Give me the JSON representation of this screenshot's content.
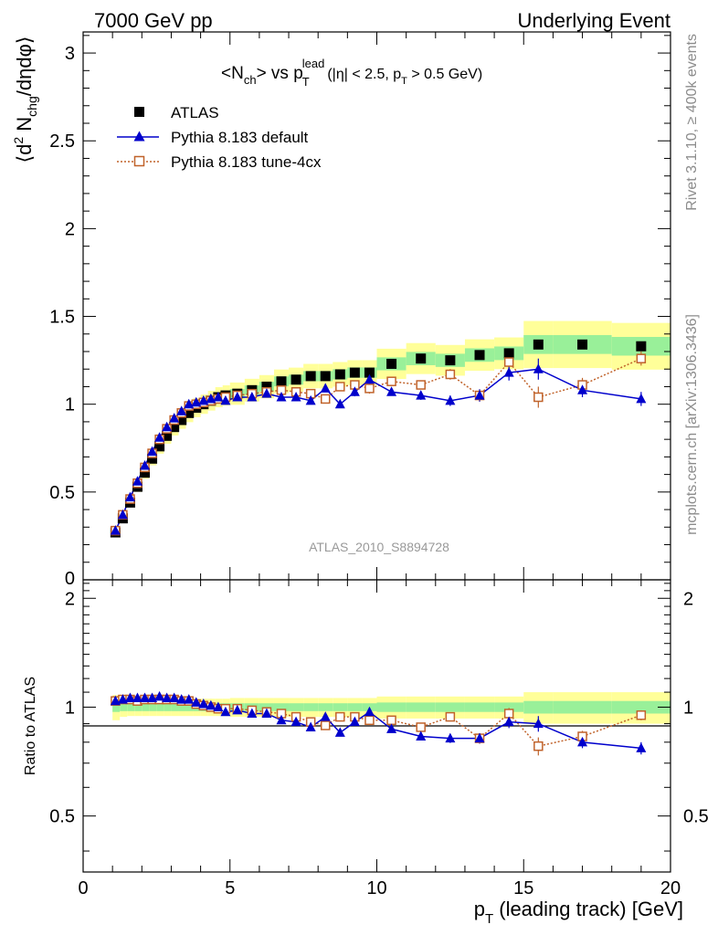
{
  "header": {
    "left": "7000 GeV pp",
    "right": "Underlying Event"
  },
  "side_labels": {
    "rivet": "Rivet 3.1.10, ≥ 400k events",
    "mcplots": "mcplots.cern.ch [arXiv:1306.3436]"
  },
  "analysis_id": "ATLAS_2010_S8894728",
  "colors": {
    "atlas": "#000000",
    "default": "#0000cc",
    "tune4cx": "#c0622a",
    "band_inner": "#99f099",
    "band_outer": "#ffff99"
  },
  "chart_data": {
    "type": "scatter",
    "title": "<N_ch> vs p_T^lead (|η| < 2.5, p_T > 0.5 GeV)",
    "title_parts": {
      "n": "<N",
      "ch": "ch",
      "vs": "> vs p",
      "T": "T",
      "lead": "lead",
      "cut_a": "(|η| < 2.5, p",
      "cut_T": "T",
      "cut_b": " > 0.5 GeV)"
    },
    "ylabel_parts": {
      "open": "⟨d",
      "sup2": "2",
      "n": " N",
      "chg": "chg",
      "rest": "/dηdφ⟩"
    },
    "xlabel_parts": {
      "p": "p",
      "T": "T",
      "rest": " (leading track) [GeV]"
    },
    "ratio_ylabel": "Ratio to ATLAS",
    "xlim": [
      0,
      20
    ],
    "ylim": [
      0,
      3.12
    ],
    "ratio_ylim": [
      0.35,
      2.25
    ],
    "xticks": [
      0,
      5,
      10,
      15,
      20
    ],
    "xtick_labels": [
      "0",
      "5",
      "10",
      "15",
      "20"
    ],
    "yticks": [
      0.5,
      1,
      1.5,
      2,
      2.5,
      3
    ],
    "ytick_labels": [
      "0.5",
      "1",
      "1.5",
      "2",
      "2.5",
      "3"
    ],
    "ytick_zero_label": "0",
    "ratio_yticks": [
      0.5,
      1,
      2
    ],
    "ratio_ytick_labels": [
      "0.5",
      "1",
      "2"
    ],
    "legend": [
      "ATLAS",
      "Pythia 8.183 default",
      "Pythia 8.183 tune-4cx"
    ],
    "x": [
      1.1,
      1.35,
      1.6,
      1.85,
      2.1,
      2.35,
      2.6,
      2.85,
      3.1,
      3.35,
      3.6,
      3.85,
      4.1,
      4.35,
      4.6,
      4.85,
      5.25,
      5.75,
      6.25,
      6.75,
      7.25,
      7.75,
      8.25,
      8.75,
      9.25,
      9.75,
      10.5,
      11.5,
      12.5,
      13.5,
      14.5,
      15.5,
      17.0,
      19.0
    ],
    "x_low": [
      1.0,
      1.25,
      1.5,
      1.75,
      2.0,
      2.25,
      2.5,
      2.75,
      3.0,
      3.25,
      3.5,
      3.75,
      4.0,
      4.25,
      4.5,
      4.75,
      5.0,
      5.5,
      6.0,
      6.5,
      7.0,
      7.5,
      8.0,
      8.5,
      9.0,
      9.5,
      10.0,
      11.0,
      12.0,
      13.0,
      14.0,
      15.0,
      16.0,
      18.0
    ],
    "x_high": [
      1.25,
      1.5,
      1.75,
      2.0,
      2.25,
      2.5,
      2.75,
      3.0,
      3.25,
      3.5,
      3.75,
      4.0,
      4.25,
      4.5,
      4.75,
      5.0,
      5.5,
      6.0,
      6.5,
      7.0,
      7.5,
      8.0,
      8.5,
      9.0,
      9.5,
      10.0,
      11.0,
      12.0,
      13.0,
      14.0,
      15.0,
      16.0,
      18.0,
      20.0
    ],
    "series": [
      {
        "name": "ATLAS",
        "marker": "filled-square",
        "values": [
          0.27,
          0.35,
          0.44,
          0.53,
          0.61,
          0.69,
          0.76,
          0.82,
          0.87,
          0.91,
          0.95,
          0.98,
          1.0,
          1.02,
          1.04,
          1.05,
          1.06,
          1.08,
          1.1,
          1.13,
          1.14,
          1.16,
          1.16,
          1.17,
          1.18,
          1.18,
          1.23,
          1.26,
          1.25,
          1.28,
          1.29,
          1.34,
          1.34,
          1.33
        ],
        "band_inner": [
          0.03,
          0.025,
          0.025,
          0.025,
          0.025,
          0.025,
          0.025,
          0.025,
          0.025,
          0.025,
          0.025,
          0.025,
          0.025,
          0.025,
          0.025,
          0.025,
          0.025,
          0.025,
          0.025,
          0.025,
          0.025,
          0.025,
          0.025,
          0.025,
          0.025,
          0.025,
          0.03,
          0.03,
          0.03,
          0.03,
          0.03,
          0.04,
          0.04,
          0.04
        ],
        "band_outer": [
          0.08,
          0.06,
          0.055,
          0.055,
          0.055,
          0.055,
          0.055,
          0.055,
          0.055,
          0.055,
          0.055,
          0.055,
          0.055,
          0.055,
          0.055,
          0.055,
          0.06,
          0.06,
          0.06,
          0.06,
          0.06,
          0.06,
          0.06,
          0.06,
          0.06,
          0.06,
          0.07,
          0.07,
          0.07,
          0.07,
          0.07,
          0.1,
          0.1,
          0.1
        ]
      },
      {
        "name": "Pythia 8.183 default",
        "marker": "filled-triangle",
        "values": [
          0.28,
          0.37,
          0.47,
          0.56,
          0.65,
          0.73,
          0.81,
          0.87,
          0.92,
          0.96,
          1.0,
          1.01,
          1.02,
          1.03,
          1.04,
          1.02,
          1.04,
          1.04,
          1.06,
          1.04,
          1.04,
          1.02,
          1.09,
          1.0,
          1.07,
          1.14,
          1.07,
          1.05,
          1.02,
          1.05,
          1.18,
          1.2,
          1.08,
          1.03
        ],
        "errors": [
          0.005,
          0.005,
          0.005,
          0.005,
          0.005,
          0.005,
          0.005,
          0.005,
          0.005,
          0.005,
          0.005,
          0.005,
          0.005,
          0.005,
          0.005,
          0.005,
          0.01,
          0.01,
          0.01,
          0.01,
          0.015,
          0.015,
          0.02,
          0.02,
          0.025,
          0.03,
          0.02,
          0.025,
          0.03,
          0.035,
          0.045,
          0.06,
          0.04,
          0.04
        ],
        "ratio": [
          1.04,
          1.05,
          1.06,
          1.06,
          1.06,
          1.06,
          1.07,
          1.06,
          1.06,
          1.05,
          1.05,
          1.03,
          1.02,
          1.01,
          1.0,
          0.97,
          0.98,
          0.96,
          0.96,
          0.92,
          0.91,
          0.88,
          0.94,
          0.85,
          0.91,
          0.97,
          0.87,
          0.83,
          0.82,
          0.82,
          0.91,
          0.9,
          0.8,
          0.77
        ]
      },
      {
        "name": "Pythia 8.183 tune-4cx",
        "marker": "open-square",
        "values": [
          0.28,
          0.37,
          0.46,
          0.55,
          0.64,
          0.72,
          0.8,
          0.86,
          0.91,
          0.95,
          0.99,
          1.0,
          1.01,
          1.02,
          1.03,
          1.04,
          1.05,
          1.06,
          1.07,
          1.08,
          1.07,
          1.06,
          1.03,
          1.1,
          1.11,
          1.09,
          1.13,
          1.11,
          1.17,
          1.05,
          1.24,
          1.04,
          1.11,
          1.26
        ],
        "errors": [
          0.005,
          0.005,
          0.005,
          0.005,
          0.005,
          0.005,
          0.005,
          0.005,
          0.005,
          0.005,
          0.005,
          0.005,
          0.005,
          0.005,
          0.005,
          0.005,
          0.01,
          0.01,
          0.01,
          0.01,
          0.015,
          0.015,
          0.02,
          0.02,
          0.025,
          0.03,
          0.02,
          0.025,
          0.03,
          0.035,
          0.045,
          0.06,
          0.04,
          0.04
        ],
        "ratio": [
          1.04,
          1.05,
          1.05,
          1.04,
          1.05,
          1.05,
          1.05,
          1.05,
          1.05,
          1.04,
          1.04,
          1.02,
          1.01,
          1.0,
          0.99,
          0.99,
          0.99,
          0.98,
          0.97,
          0.96,
          0.94,
          0.91,
          0.89,
          0.94,
          0.94,
          0.92,
          0.92,
          0.88,
          0.94,
          0.82,
          0.96,
          0.78,
          0.83,
          0.95
        ]
      }
    ]
  }
}
